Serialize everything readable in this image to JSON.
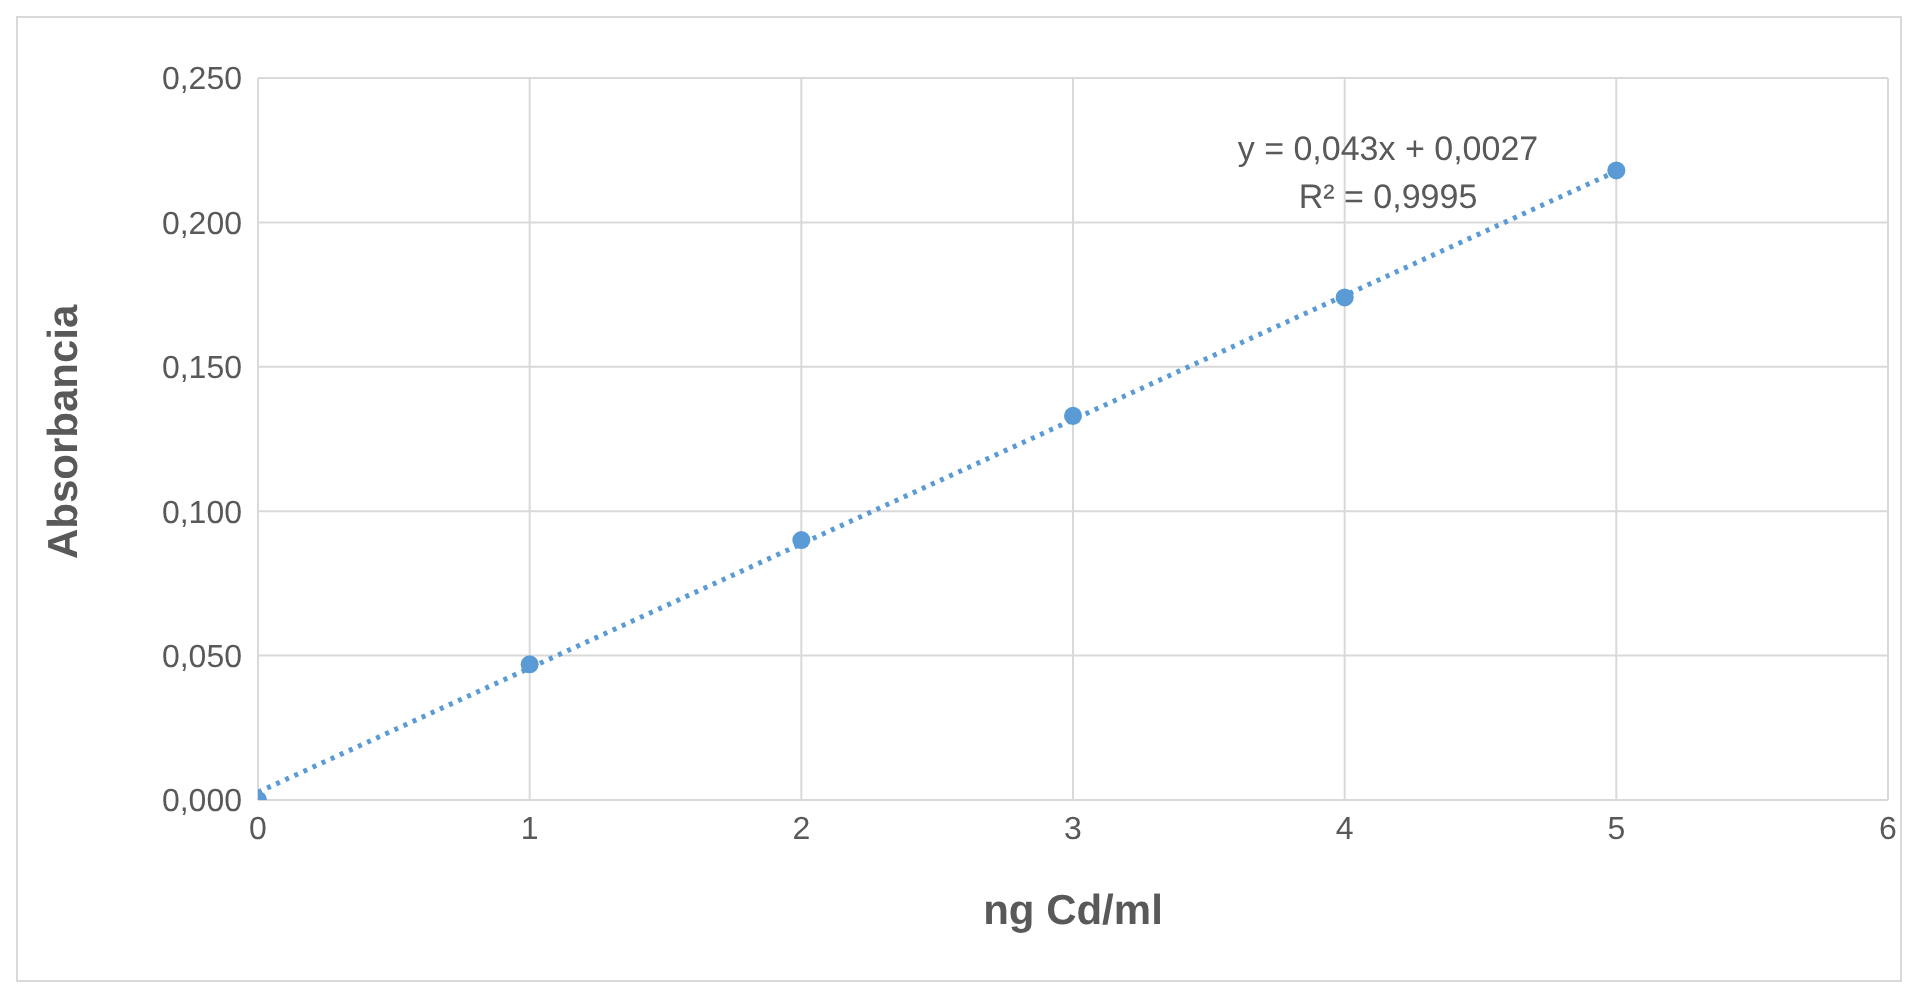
{
  "chart_data": {
    "type": "scatter",
    "xlabel": "ng Cd/ml",
    "ylabel": "Absorbancia",
    "x": [
      0,
      1,
      2,
      3,
      4,
      5
    ],
    "series": [
      {
        "color": "#5b9bd5",
        "values": [
          0.0,
          0.047,
          0.09,
          0.133,
          0.174,
          0.218
        ],
        "marker": "circle"
      },
      {
        "type": "line",
        "color": "#5b9bd5",
        "x": [
          0,
          5
        ],
        "values": [
          0.0027,
          0.2177
        ],
        "line_style": "dotted",
        "marker": "none"
      }
    ],
    "xlim": [
      0,
      6
    ],
    "xticks": [
      0,
      1,
      2,
      3,
      4,
      5,
      6
    ],
    "ylim": [
      0,
      0.25
    ],
    "yticks": [
      {
        "value": 0,
        "label": "0,000"
      },
      {
        "value": 0.05,
        "label": "0,050"
      },
      {
        "value": 0.1,
        "label": "0,100"
      },
      {
        "value": 0.15,
        "label": "0,150"
      },
      {
        "value": 0.2,
        "label": "0,200"
      },
      {
        "value": 0.25,
        "label": "0,250"
      }
    ],
    "grid": true,
    "annotations": [
      "y = 0,043x + 0,0027",
      "R² = 0,9995"
    ]
  }
}
